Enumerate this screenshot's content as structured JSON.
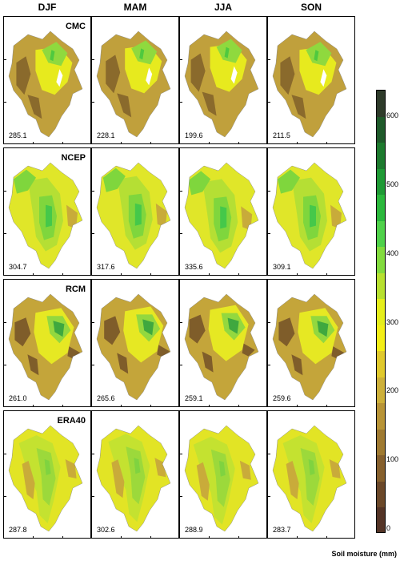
{
  "seasons": [
    "DJF",
    "MAM",
    "JJA",
    "SON"
  ],
  "rows": [
    {
      "name": "CMC",
      "values": [
        "285.1",
        "228.1",
        "199.6",
        "211.5"
      ]
    },
    {
      "name": "NCEP",
      "values": [
        "304.7",
        "317.6",
        "335.6",
        "309.1"
      ]
    },
    {
      "name": "RCM",
      "values": [
        "261.0",
        "265.6",
        "259.1",
        "259.6"
      ]
    },
    {
      "name": "ERA40",
      "values": [
        "287.8",
        "302.6",
        "288.9",
        "283.7"
      ]
    }
  ],
  "colorbar": {
    "title": "Soil moisture (mm)",
    "labels": [
      "600",
      "500",
      "400",
      "300",
      "200",
      "100",
      "0"
    ],
    "colors": [
      "#2e3b2a",
      "#1f5a2a",
      "#1d7a2e",
      "#1f9a35",
      "#2bb83c",
      "#4fd14a",
      "#82db3e",
      "#b7e030",
      "#e5ee1c",
      "#f3ee17",
      "#e0c92d",
      "#cdb03a",
      "#b89437",
      "#9f7a31",
      "#86602d",
      "#6b4829",
      "#543426"
    ]
  },
  "map_colors": {
    "CMC": [
      "#8a6a2c",
      "#c0a03c",
      "#e7ea1e",
      "#8fd93e",
      "#4fc93f"
    ],
    "NCEP": [
      "#c8ab3a",
      "#e0e629",
      "#b5df34",
      "#7fd63d",
      "#45c84a"
    ],
    "RCM": [
      "#7f5d2a",
      "#c4a53a",
      "#e6e823",
      "#93d83f",
      "#3fa83f"
    ],
    "ERA40": [
      "#c9ab3a",
      "#e2e425",
      "#c4e230",
      "#9cd93b",
      "#7fd340"
    ]
  }
}
